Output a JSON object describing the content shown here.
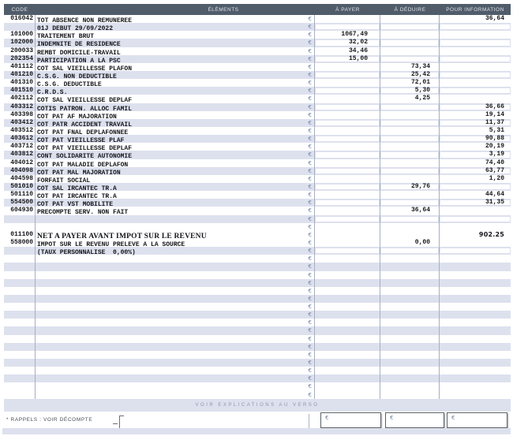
{
  "colors": {
    "header_bg": "#515c6b",
    "header_text": "#dde2ea",
    "row_alt": "#dde1ee",
    "column_line": "#a6aec0",
    "euro_symbol": "#7583a0",
    "text": "#15161a"
  },
  "table": {
    "headers": [
      "CODE",
      "ÉLÉMENTS",
      "À PAYER",
      "À DÉDUIRE",
      "POUR INFORMATION"
    ],
    "currency_symbol": "€",
    "rows": [
      {
        "code": "016042",
        "label": "TOT ABSENCE NON REMUNEREE",
        "info": "36,64",
        "shade": "w",
        "fields": true
      },
      {
        "label": "01J DEBUT 29/09/2022",
        "shade": "l",
        "fields": true
      },
      {
        "code": "101000",
        "label": "TRAITEMENT BRUT",
        "pay": "1067,49",
        "shade": "w",
        "fields": true
      },
      {
        "code": "102000",
        "label": "INDEMNITE DE RESIDENCE",
        "pay": "32,02",
        "shade": "l",
        "fields": true
      },
      {
        "code": "200033",
        "label": "REMBT DOMICILE-TRAVAIL",
        "pay": "34,46",
        "shade": "w",
        "fields": true
      },
      {
        "code": "202354",
        "label": "PARTICIPATION A LA PSC",
        "pay": "15,00",
        "shade": "l",
        "fields": true
      },
      {
        "code": "401112",
        "label": "COT SAL VIEILLESSE PLAFON",
        "ded": "73,34",
        "shade": "w",
        "fields": true
      },
      {
        "code": "401210",
        "label": "C.S.G. NON DEDUCTIBLE",
        "ded": "25,42",
        "shade": "l",
        "fields": true
      },
      {
        "code": "401310",
        "label": "C.S.G. DEDUCTIBLE",
        "ded": "72,01",
        "shade": "w",
        "fields": true
      },
      {
        "code": "401510",
        "label": "C.R.D.S.",
        "ded": "5,30",
        "shade": "l",
        "fields": true
      },
      {
        "code": "402112",
        "label": "COT SAL VIEILLESSE DEPLAF",
        "ded": "4,25",
        "shade": "w",
        "fields": true
      },
      {
        "code": "403312",
        "label": "COTIS PATRON. ALLOC FAMIL",
        "info": "36,66",
        "shade": "l",
        "fields": true
      },
      {
        "code": "403398",
        "label": "COT PAT AF MAJORATION",
        "info": "19,14",
        "shade": "w",
        "fields": true
      },
      {
        "code": "403412",
        "label": "COT PATR ACCIDENT TRAVAIL",
        "info": "11,37",
        "shade": "l",
        "fields": true
      },
      {
        "code": "403512",
        "label": "COT PAT FNAL DEPLAFONNEE",
        "info": "5,31",
        "shade": "w",
        "fields": true
      },
      {
        "code": "403612",
        "label": "COT PAT VIEILLESSE PLAF",
        "info": "90,88",
        "shade": "l",
        "fields": true
      },
      {
        "code": "403712",
        "label": "COT PAT VIEILLESSE DEPLAF",
        "info": "20,19",
        "shade": "w",
        "fields": true
      },
      {
        "code": "403812",
        "label": "CONT SOLIDARITE AUTONOMIE",
        "info": "3,19",
        "shade": "l",
        "fields": true
      },
      {
        "code": "404012",
        "label": "COT PAT MALADIE DEPLAFON",
        "info": "74,40",
        "shade": "w",
        "fields": true
      },
      {
        "code": "404098",
        "label": "COT PAT MAL MAJORATION",
        "info": "63,77",
        "shade": "l",
        "fields": true
      },
      {
        "code": "404598",
        "label": "FORFAIT SOCIAL",
        "info": "1,20",
        "shade": "w",
        "fields": true
      },
      {
        "code": "501010",
        "label": "COT SAL IRCANTEC TR.A",
        "ded": "29,76",
        "shade": "l",
        "fields": true
      },
      {
        "code": "501110",
        "label": "COT PAT IRCANTEC TR.A",
        "info": "44,64",
        "shade": "w",
        "fields": true
      },
      {
        "code": "554500",
        "label": "COT PAT VST MOBILITE",
        "info": "31,35",
        "shade": "l",
        "fields": true
      },
      {
        "code": "604930",
        "label": "PRECOMPTE SERV. NON FAIT",
        "ded": "36,64",
        "shade": "w",
        "fields": true
      },
      {
        "shade": "l",
        "fields": true
      },
      {
        "shade": "w",
        "fields": true
      },
      {
        "code": "011100",
        "label": "NET A PAYER AVANT IMPOT SUR LE REVENU",
        "info": "902.25",
        "shade": "w",
        "net": true,
        "fields": true
      },
      {
        "code": "558000",
        "label": "IMPOT SUR LE REVENU PRELEVE A LA SOURCE",
        "ded": "0,00",
        "shade": "w",
        "fields": true
      },
      {
        "label": "(TAUX PERSONNALISE  0,00%)",
        "shade": "l",
        "fields": true
      },
      {
        "shade": "w"
      },
      {
        "shade": "l"
      },
      {
        "shade": "w"
      },
      {
        "shade": "l"
      },
      {
        "shade": "w"
      },
      {
        "shade": "l"
      },
      {
        "shade": "w"
      },
      {
        "shade": "l"
      },
      {
        "shade": "w"
      },
      {
        "shade": "l"
      },
      {
        "shade": "w"
      },
      {
        "shade": "l"
      },
      {
        "shade": "w"
      },
      {
        "shade": "l"
      },
      {
        "shade": "w"
      },
      {
        "shade": "l"
      },
      {
        "shade": "w"
      },
      {
        "shade": "w"
      }
    ]
  },
  "verso_note": "VOIR EXPLICATIONS AU VERSO",
  "footer": {
    "rappels_label": "* RAPPELS : VOIR DÉCOMPTE",
    "boxes": [
      "€",
      "€",
      "€"
    ]
  }
}
